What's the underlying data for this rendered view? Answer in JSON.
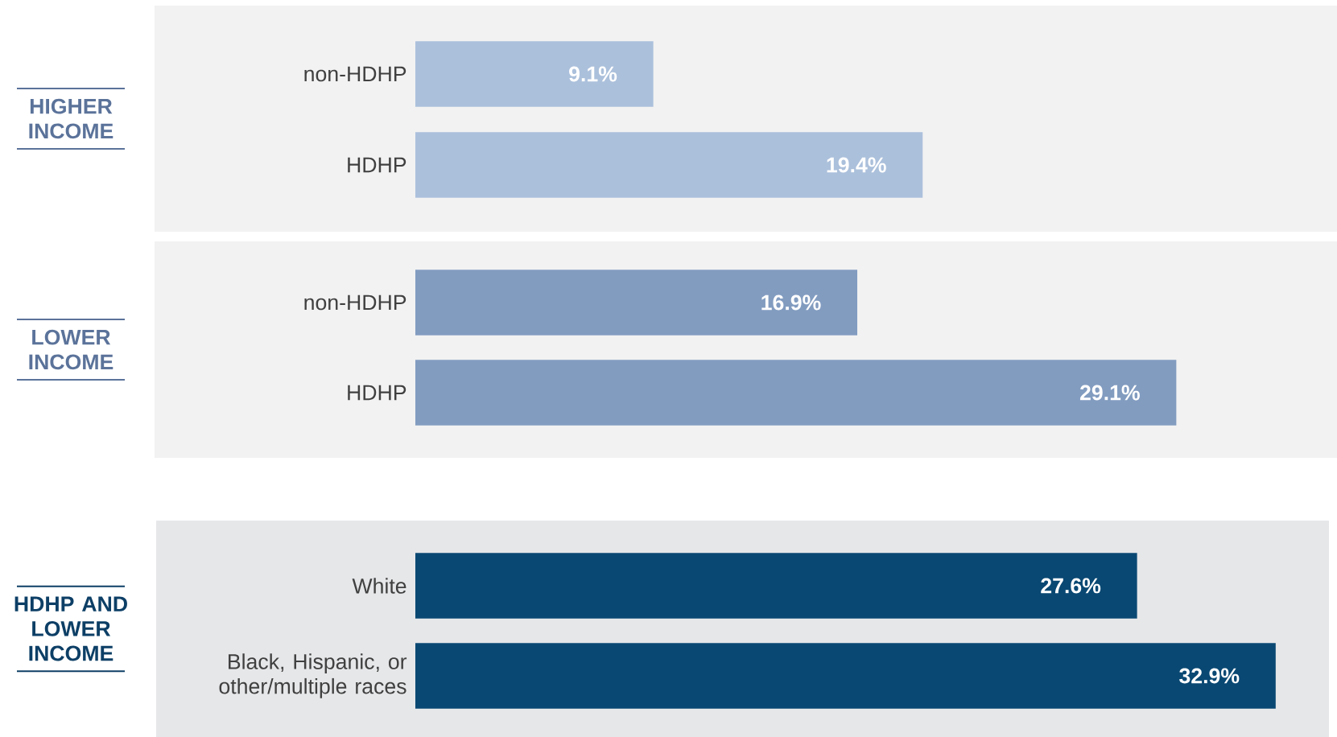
{
  "chart_data": [
    {
      "type": "bar",
      "orientation": "horizontal",
      "ylabel": "HIGHER INCOME",
      "categories": [
        "non-HDHP",
        "HDHP"
      ],
      "values": [
        9.1,
        19.4
      ],
      "color": "#abc0db",
      "value_labels": [
        "9.1%",
        "19.4%"
      ],
      "tick_labels": "y"
    },
    {
      "type": "bar",
      "orientation": "horizontal",
      "ylabel": "LOWER INCOME",
      "categories": [
        "non-HDHP",
        "HDHP"
      ],
      "values": [
        16.9,
        29.1
      ],
      "color": "#829cc0",
      "value_labels": [
        "16.9%",
        "29.1%"
      ],
      "tick_labels": "y"
    },
    {
      "type": "bar",
      "orientation": "horizontal",
      "ylabel": "HDHP AND LOWER INCOME",
      "categories": [
        "White",
        "Black, Hispanic, or other/multiple races"
      ],
      "values": [
        27.6,
        32.9
      ],
      "color": "#094873",
      "value_labels": [
        "27.6%",
        "32.9%"
      ],
      "tick_labels": "y"
    }
  ]
}
